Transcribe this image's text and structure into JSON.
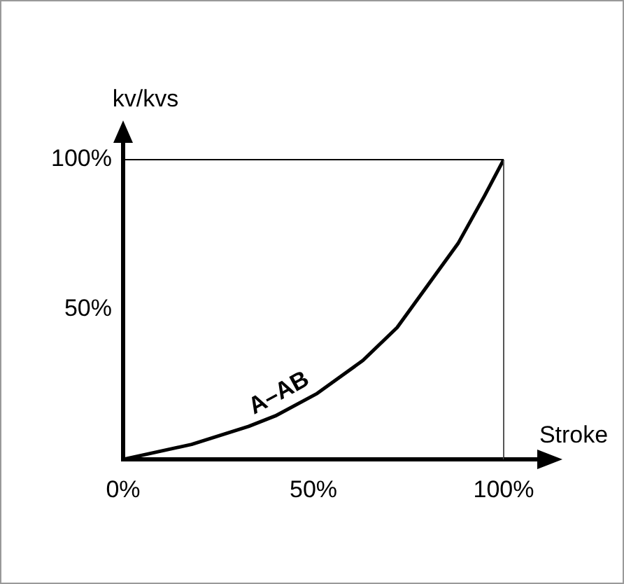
{
  "chart_data": {
    "type": "line",
    "xlabel": "Stroke",
    "ylabel": "kv/kvs",
    "x": [
      0,
      18,
      33,
      40,
      51,
      63,
      72,
      80,
      88,
      95,
      100
    ],
    "series": [
      {
        "color": "#000000",
        "values": [
          0,
          5,
          11,
          14.5,
          22,
          33,
          44,
          58,
          72,
          88,
          100
        ]
      }
    ],
    "xlim": [
      0,
      100
    ],
    "ylim": [
      0,
      100
    ],
    "xticks": [
      {
        "value": 0,
        "label": "0%"
      },
      {
        "value": 50,
        "label": "50%"
      },
      {
        "value": 100,
        "label": "100%"
      }
    ],
    "yticks": [
      {
        "value": 50,
        "label": "50%"
      },
      {
        "value": 100,
        "label": "100%"
      }
    ],
    "ref_lines": [
      {
        "axis": "x",
        "value": 100,
        "color": "#555555"
      },
      {
        "axis": "y",
        "value": 100,
        "color": "#000000"
      }
    ],
    "annotations": [
      "A–AB"
    ],
    "grid": false,
    "legend": false,
    "marker": "none",
    "line_style": "solid"
  }
}
